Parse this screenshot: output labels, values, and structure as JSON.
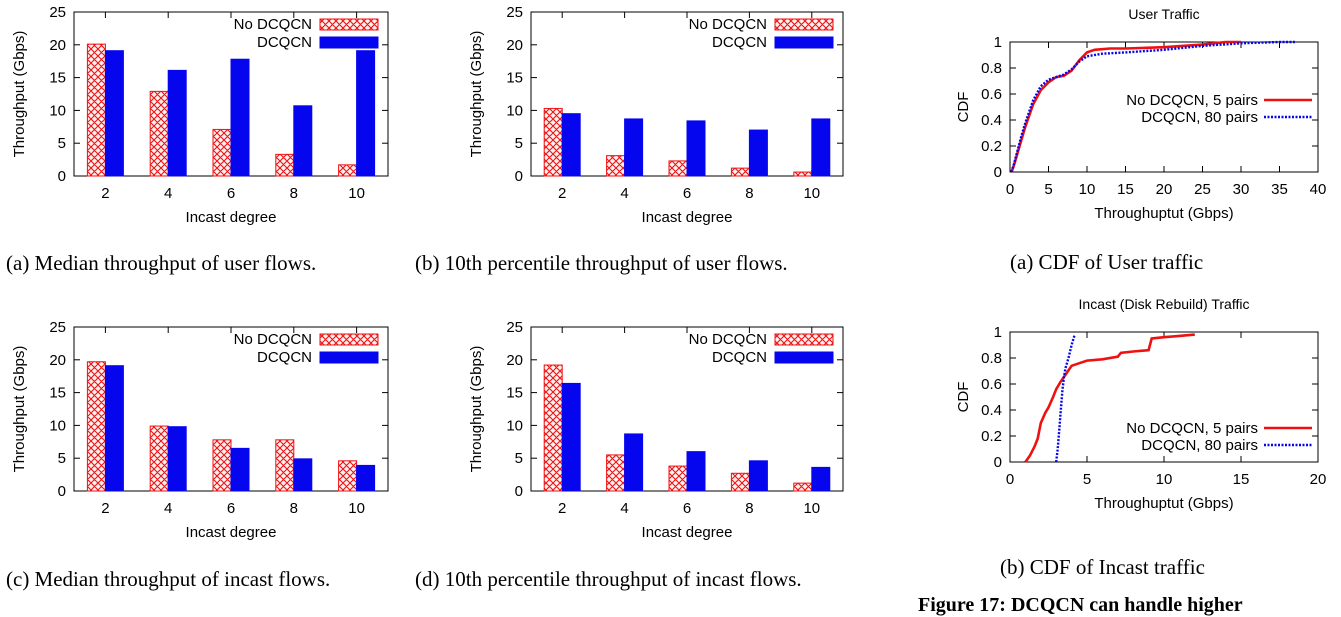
{
  "colors": {
    "red": "#ee1111",
    "blue": "#0505ee",
    "hatch_bg": "#fff0f0",
    "black": "#000000"
  },
  "captions": {
    "a": "(a) Median throughput of user flows.",
    "b": "(b) 10th percentile throughput of user flows.",
    "c": "(c) Median throughput of incast flows.",
    "d": "(d) 10th percentile throughput of incast flows.",
    "e": "(a) CDF of User traffic",
    "f": "(b) CDF of Incast traffic"
  },
  "figure_title": "Figure 17: DCQCN can handle higher",
  "chart_data": [
    {
      "id": "a",
      "type": "bar",
      "categories": [
        "2",
        "4",
        "6",
        "8",
        "10"
      ],
      "series": [
        {
          "name": "No DCQCN",
          "values": [
            20.1,
            12.9,
            7.1,
            3.3,
            1.7
          ]
        },
        {
          "name": "DCQCN",
          "values": [
            19.1,
            16.1,
            17.8,
            10.7,
            19.1
          ]
        }
      ],
      "xlabel": "Incast degree",
      "ylabel": "Throughput (Gbps)",
      "ylim": [
        0,
        25
      ],
      "yticks": [
        0,
        5,
        10,
        15,
        20,
        25
      ],
      "legend": "top-right"
    },
    {
      "id": "b",
      "type": "bar",
      "categories": [
        "2",
        "4",
        "6",
        "8",
        "10"
      ],
      "series": [
        {
          "name": "No DCQCN",
          "values": [
            10.3,
            3.1,
            2.3,
            1.2,
            0.6
          ]
        },
        {
          "name": "DCQCN",
          "values": [
            9.5,
            8.7,
            8.4,
            7.0,
            8.7
          ]
        }
      ],
      "xlabel": "Incast degree",
      "ylabel": "Throughput (Gbps)",
      "ylim": [
        0,
        25
      ],
      "yticks": [
        0,
        5,
        10,
        15,
        20,
        25
      ],
      "legend": "top-right"
    },
    {
      "id": "c",
      "type": "bar",
      "categories": [
        "2",
        "4",
        "6",
        "8",
        "10"
      ],
      "series": [
        {
          "name": "No DCQCN",
          "values": [
            19.7,
            9.9,
            7.8,
            7.8,
            4.6
          ]
        },
        {
          "name": "DCQCN",
          "values": [
            19.1,
            9.8,
            6.5,
            4.9,
            3.9
          ]
        }
      ],
      "xlabel": "Incast degree",
      "ylabel": "Throughput (Gbps)",
      "ylim": [
        0,
        25
      ],
      "yticks": [
        0,
        5,
        10,
        15,
        20,
        25
      ],
      "legend": "top-right"
    },
    {
      "id": "d",
      "type": "bar",
      "categories": [
        "2",
        "4",
        "6",
        "8",
        "10"
      ],
      "series": [
        {
          "name": "No DCQCN",
          "values": [
            19.2,
            5.5,
            3.8,
            2.7,
            1.2
          ]
        },
        {
          "name": "DCQCN",
          "values": [
            16.4,
            8.7,
            6.0,
            4.6,
            3.6
          ]
        }
      ],
      "xlabel": "Incast degree",
      "ylabel": "Throughput (Gbps)",
      "ylim": [
        0,
        25
      ],
      "yticks": [
        0,
        5,
        10,
        15,
        20,
        25
      ],
      "legend": "top-right"
    },
    {
      "id": "e",
      "type": "line",
      "title": "User Traffic",
      "xlabel": "Throughuptut (Gbps)",
      "ylabel": "CDF",
      "xlim": [
        0,
        40
      ],
      "xticks": [
        0,
        5,
        10,
        15,
        20,
        25,
        30,
        35,
        40
      ],
      "ylim": [
        0,
        1
      ],
      "yticks": [
        0,
        0.2,
        0.4,
        0.6,
        0.8,
        1
      ],
      "legend": "right-center",
      "series": [
        {
          "name": "No DCQCN, 5 pairs",
          "style": "solid",
          "x": [
            0.2,
            0.5,
            1,
            1.5,
            2,
            3,
            4,
            5,
            6,
            7,
            8,
            9,
            10,
            11,
            13,
            15,
            20,
            25,
            28,
            30
          ],
          "y": [
            0,
            0.05,
            0.15,
            0.25,
            0.35,
            0.52,
            0.63,
            0.69,
            0.73,
            0.74,
            0.78,
            0.86,
            0.92,
            0.94,
            0.95,
            0.95,
            0.96,
            0.98,
            1.0,
            1.0
          ]
        },
        {
          "name": "DCQCN, 80 pairs",
          "style": "dotted",
          "x": [
            0.2,
            0.5,
            1,
            1.5,
            2,
            3,
            4,
            5,
            6,
            7,
            8,
            9,
            10,
            12,
            15,
            20,
            25,
            30,
            35,
            37
          ],
          "y": [
            0,
            0.06,
            0.17,
            0.28,
            0.38,
            0.55,
            0.66,
            0.71,
            0.73,
            0.75,
            0.79,
            0.85,
            0.89,
            0.91,
            0.92,
            0.94,
            0.97,
            0.99,
            1.0,
            1.0
          ]
        }
      ]
    },
    {
      "id": "f",
      "type": "line",
      "title": "Incast (Disk Rebuild) Traffic",
      "xlabel": "Throughuptut (Gbps)",
      "ylabel": "CDF",
      "xlim": [
        0,
        20
      ],
      "xticks": [
        0,
        5,
        10,
        15,
        20
      ],
      "ylim": [
        0,
        1
      ],
      "yticks": [
        0,
        0.2,
        0.4,
        0.6,
        0.8,
        1
      ],
      "legend": "bottom-right",
      "series": [
        {
          "name": "No DCQCN, 5 pairs",
          "style": "solid",
          "x": [
            1,
            1.3,
            1.6,
            1.8,
            2,
            2.3,
            2.5,
            2.8,
            3,
            3.3,
            3.6,
            4,
            4.5,
            5,
            6,
            7,
            7.2,
            8,
            9,
            9.2,
            10,
            11,
            12
          ],
          "y": [
            0,
            0.05,
            0.12,
            0.18,
            0.3,
            0.38,
            0.42,
            0.5,
            0.56,
            0.62,
            0.67,
            0.74,
            0.76,
            0.78,
            0.79,
            0.81,
            0.84,
            0.85,
            0.86,
            0.95,
            0.96,
            0.97,
            0.98
          ]
        },
        {
          "name": "DCQCN, 80 pairs",
          "style": "dotted",
          "x": [
            3,
            3.1,
            3.2,
            3.3,
            3.4,
            3.5,
            3.6,
            3.8,
            4,
            4.2
          ],
          "y": [
            0,
            0.1,
            0.25,
            0.4,
            0.55,
            0.65,
            0.72,
            0.8,
            0.9,
            0.98
          ]
        }
      ]
    }
  ]
}
